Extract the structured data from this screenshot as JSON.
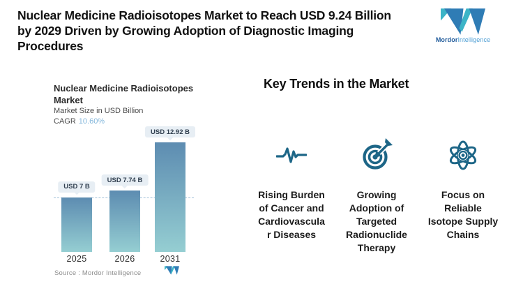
{
  "header": {
    "title": "Nuclear Medicine Radioisotopes Market to Reach USD 9.24 Billion\nby 2029 Driven by Growing Adoption of Diagnostic Imaging\nProcedures",
    "brand": {
      "bold_part": "Mordor",
      "light_part": "Intelligence"
    }
  },
  "chart": {
    "title": "Nuclear Medicine Radioisotopes\nMarket",
    "subtitle": "Market Size in USD Billion",
    "cagr_label": "CAGR",
    "cagr_value": "10.60%",
    "source": "Source :  Mordor Intelligence"
  },
  "chart_data": {
    "type": "bar",
    "title": "Nuclear Medicine Radioisotopes Market",
    "subtitle": "Market Size in USD Billion",
    "cagr": "10.60%",
    "categories": [
      "2025",
      "2026",
      "2031"
    ],
    "values": [
      7,
      7.74,
      12.92
    ],
    "value_labels": [
      "USD 7 B",
      "USD 7.74 B",
      "USD 12.92 B"
    ],
    "unit": "USD Billion",
    "reference_line_value": 7,
    "reference_line_style": "dashed",
    "grid": false,
    "legend": false,
    "bar_gradient_top": "#5d8cb1",
    "bar_gradient_bottom": "#95ced2"
  },
  "trends": {
    "heading": "Key Trends in the Market",
    "items": [
      {
        "icon": "pulse-icon",
        "label": "Rising Burden\nof Cancer and\nCardiovascula\nr Diseases"
      },
      {
        "icon": "target-dart-icon",
        "label": "Growing\nAdoption of\nTargeted\nRadionuclide\nTherapy"
      },
      {
        "icon": "atom-icon",
        "label": "Focus on\nReliable\nIsotope Supply\nChains"
      }
    ]
  },
  "colors": {
    "headline_text": "#111111",
    "icon_accent": "#1d6687",
    "cagr_accent": "#82b6db",
    "pill_background": "#e7eef4",
    "dashed_line": "#a3c2d9",
    "logo_blue": "#2f7cb5",
    "logo_teal": "#3cb4c7"
  }
}
